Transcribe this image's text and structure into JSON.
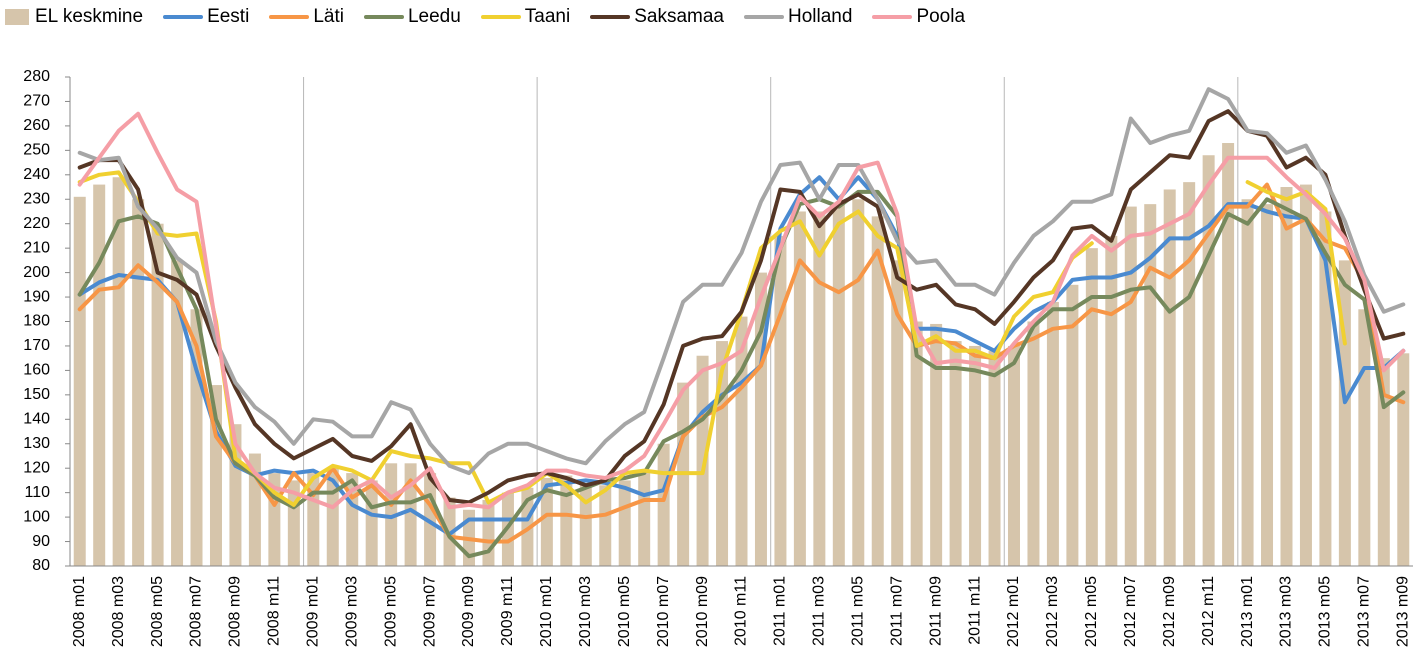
{
  "chart_data": {
    "type": "combo",
    "categories": [
      "2008 m01",
      null,
      "2008 m03",
      null,
      "2008 m05",
      null,
      "2008 m07",
      null,
      "2008 m09",
      null,
      "2008 m11",
      null,
      "2009 m01",
      null,
      "2009 m03",
      null,
      "2009 m05",
      null,
      "2009 m07",
      null,
      "2009 m09",
      null,
      "2009 m11",
      null,
      "2010 m01",
      null,
      "2010 m03",
      null,
      "2010 m05",
      null,
      "2010 m07",
      null,
      "2010 m09",
      null,
      "2010 m11",
      null,
      "2011 m01",
      null,
      "2011 m03",
      null,
      "2011 m05",
      null,
      "2011 m07",
      null,
      "2011 m09",
      null,
      "2011 m11",
      null,
      "2012 m01",
      null,
      "2012 m03",
      null,
      "2012 m05",
      null,
      "2012 m07",
      null,
      "2012 m09",
      null,
      "2012 m11",
      null,
      "2013 m01",
      null,
      "2013 m03",
      null,
      "2013 m05",
      null,
      "2013 m07",
      null,
      "2013 m09"
    ],
    "ylim": [
      80,
      280
    ],
    "yticks": [
      80,
      90,
      100,
      110,
      120,
      130,
      140,
      150,
      160,
      170,
      180,
      190,
      200,
      210,
      220,
      230,
      240,
      250,
      260,
      270,
      280
    ],
    "series": [
      {
        "name": "EL keskmine",
        "type": "bar",
        "color": "#d6c5ab",
        "values": [
          231,
          236,
          239,
          230,
          220,
          205,
          185,
          154,
          138,
          126,
          118,
          115,
          118,
          120,
          118,
          115,
          122,
          122,
          118,
          108,
          103,
          107,
          110,
          112,
          116,
          117,
          114,
          113,
          115,
          118,
          130,
          155,
          166,
          172,
          182,
          200,
          215,
          225,
          225,
          228,
          230,
          223,
          205,
          180,
          179,
          172,
          170,
          168,
          170,
          180,
          188,
          195,
          210,
          215,
          227,
          228,
          234,
          237,
          248,
          253,
          230,
          228,
          235,
          236,
          225,
          205,
          185,
          165,
          167
        ]
      },
      {
        "name": "Eesti",
        "type": "line",
        "color": "#4a8ad0",
        "values": [
          191,
          196,
          199,
          198,
          197,
          188,
          160,
          135,
          121,
          117,
          119,
          118,
          119,
          115,
          105,
          101,
          100,
          103,
          98,
          93,
          99,
          99,
          99,
          99,
          113,
          114,
          115,
          114,
          112,
          109,
          111,
          133,
          143,
          150,
          155,
          162,
          218,
          232,
          239,
          230,
          239,
          230,
          215,
          177,
          177,
          176,
          172,
          168,
          177,
          184,
          188,
          197,
          198,
          198,
          200,
          206,
          214,
          214,
          219,
          228,
          228,
          225,
          223,
          222,
          205,
          147,
          161,
          161,
          168
        ]
      },
      {
        "name": "Läti",
        "type": "line",
        "color": "#f79646",
        "values": [
          185,
          193,
          194,
          203,
          196,
          188,
          170,
          133,
          122,
          117,
          105,
          118,
          109,
          120,
          108,
          113,
          105,
          115,
          105,
          92,
          91,
          90,
          90,
          95,
          101,
          101,
          100,
          101,
          104,
          107,
          107,
          133,
          141,
          145,
          153,
          162,
          183,
          205,
          196,
          192,
          197,
          209,
          183,
          170,
          172,
          171,
          166,
          165,
          170,
          173,
          177,
          178,
          185,
          183,
          188,
          202,
          198,
          205,
          216,
          227,
          227,
          236,
          218,
          222,
          213,
          210,
          196,
          150,
          147
        ]
      },
      {
        "name": "Leedu",
        "type": "line",
        "color": "#76895c",
        "values": [
          191,
          204,
          221,
          223,
          220,
          202,
          185,
          140,
          122,
          117,
          108,
          104,
          110,
          110,
          115,
          104,
          106,
          106,
          109,
          92,
          84,
          86,
          96,
          107,
          111,
          109,
          112,
          115,
          116,
          118,
          131,
          135,
          140,
          149,
          160,
          176,
          210,
          228,
          230,
          227,
          233,
          233,
          223,
          166,
          161,
          161,
          160,
          158,
          163,
          178,
          185,
          185,
          190,
          190,
          193,
          194,
          184,
          190,
          207,
          224,
          220,
          230,
          226,
          222,
          208,
          195,
          189,
          145,
          151
        ]
      },
      {
        "name": "Taani",
        "type": "line",
        "color": "#f0d030",
        "values": [
          237,
          240,
          241,
          229,
          216,
          215,
          216,
          180,
          124,
          118,
          110,
          105,
          116,
          121,
          119,
          115,
          127,
          125,
          124,
          122,
          122,
          106,
          110,
          112,
          118,
          113,
          106,
          111,
          118,
          119,
          118,
          118,
          118,
          160,
          184,
          210,
          217,
          221,
          207,
          220,
          225,
          215,
          210,
          170,
          174,
          168,
          168,
          165,
          182,
          190,
          192,
          206,
          212,
          null,
          null,
          null,
          null,
          null,
          null,
          null,
          237,
          233,
          230,
          233,
          226,
          171,
          null,
          null,
          null
        ]
      },
      {
        "name": "Saksamaa",
        "type": "line",
        "color": "#553625",
        "values": [
          243,
          246,
          246,
          234,
          200,
          197,
          191,
          170,
          153,
          138,
          130,
          124,
          128,
          132,
          125,
          123,
          129,
          138,
          116,
          107,
          106,
          110,
          115,
          117,
          118,
          116,
          113,
          115,
          125,
          131,
          146,
          170,
          173,
          174,
          184,
          205,
          234,
          233,
          219,
          228,
          232,
          227,
          198,
          193,
          195,
          187,
          185,
          179,
          188,
          198,
          205,
          218,
          219,
          213,
          234,
          241,
          248,
          247,
          262,
          266,
          258,
          256,
          243,
          247,
          240,
          215,
          193,
          173,
          175
        ]
      },
      {
        "name": "Holland",
        "type": "line",
        "color": "#a6a6a6",
        "values": [
          249,
          246,
          247,
          227,
          218,
          206,
          200,
          172,
          155,
          145,
          139,
          130,
          140,
          139,
          133,
          133,
          147,
          144,
          130,
          121,
          118,
          126,
          130,
          130,
          127,
          124,
          122,
          131,
          138,
          143,
          165,
          188,
          195,
          195,
          208,
          229,
          244,
          245,
          230,
          244,
          244,
          230,
          213,
          204,
          205,
          195,
          195,
          191,
          204,
          215,
          221,
          229,
          229,
          232,
          263,
          253,
          256,
          258,
          275,
          271,
          258,
          257,
          249,
          252,
          238,
          221,
          199,
          184,
          187
        ]
      },
      {
        "name": "Poola",
        "type": "line",
        "color": "#f59ea6",
        "values": [
          236,
          247,
          258,
          265,
          249,
          234,
          229,
          178,
          130,
          118,
          112,
          110,
          107,
          104,
          111,
          115,
          108,
          113,
          120,
          104,
          105,
          104,
          110,
          113,
          119,
          119,
          117,
          116,
          119,
          125,
          138,
          152,
          160,
          163,
          168,
          190,
          210,
          231,
          223,
          229,
          243,
          245,
          224,
          177,
          163,
          164,
          163,
          161,
          171,
          180,
          188,
          207,
          215,
          209,
          215,
          216,
          220,
          224,
          236,
          247,
          247,
          247,
          239,
          232,
          224,
          214,
          197,
          160,
          168
        ]
      }
    ]
  }
}
